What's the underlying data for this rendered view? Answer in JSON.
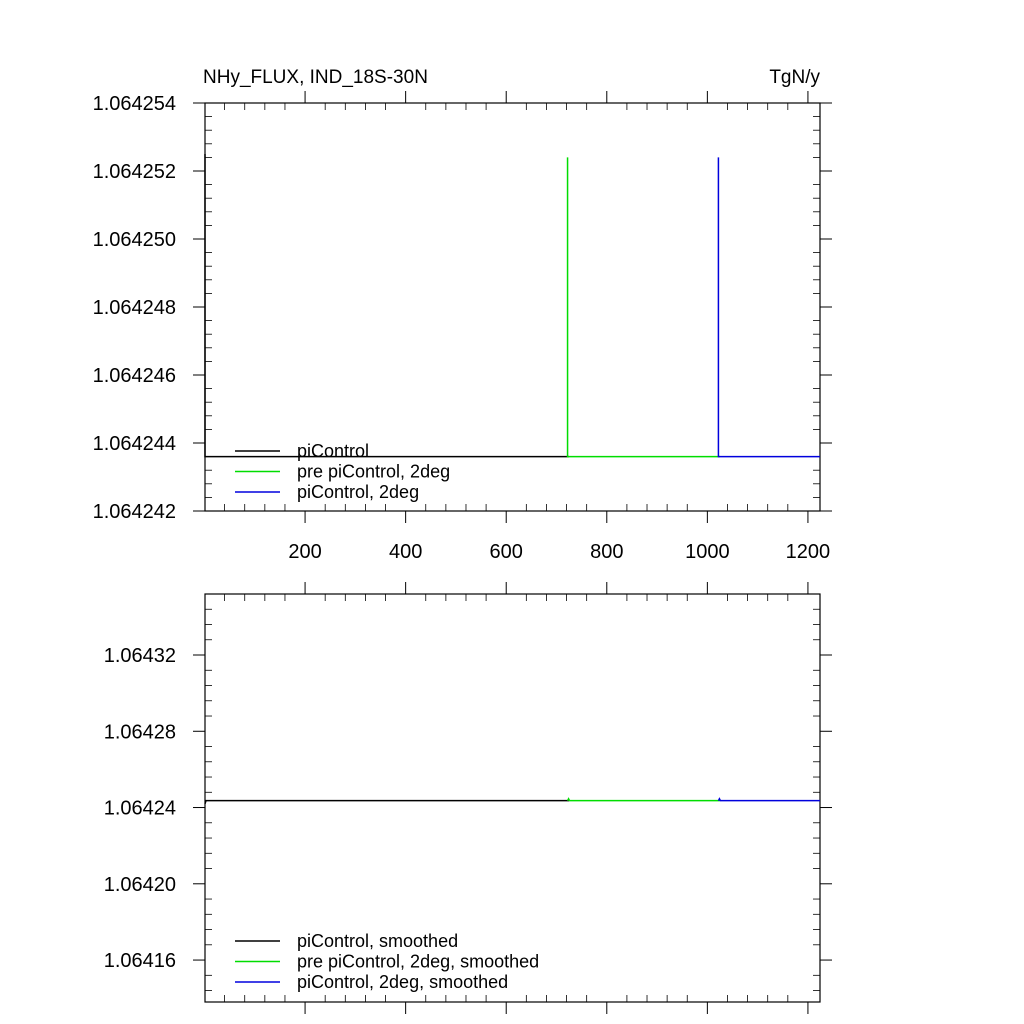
{
  "chart_data": [
    {
      "type": "line",
      "title": "NHy_FLUX, IND_18S-30N",
      "units": "TgN/y",
      "xlabel": "",
      "ylabel": "",
      "xlim": [
        1,
        1224
      ],
      "ylim": [
        1.064242,
        1.064254
      ],
      "x_ticks": [
        200,
        400,
        600,
        800,
        1000,
        1200
      ],
      "x_tick_labels": [
        "200",
        "400",
        "600",
        "800",
        "1000",
        "1200"
      ],
      "y_ticks": [
        1.064242,
        1.064244,
        1.064246,
        1.064248,
        1.06425,
        1.064252,
        1.064254
      ],
      "y_tick_labels": [
        "1.064242",
        "1.064244",
        "1.064246",
        "1.064248",
        "1.064250",
        "1.064252",
        "1.064254"
      ],
      "legend_position": "bottom-left",
      "series": [
        {
          "name": "piControl",
          "color": "#000000",
          "x": [
            1,
            1,
            5,
            10,
            100,
            300,
            500,
            725
          ],
          "y": [
            1.0642525,
            1.0642436,
            1.0642436,
            1.0642436,
            1.0642436,
            1.0642436,
            1.0642436,
            1.0642436
          ]
        },
        {
          "name": "pre piControl, 2deg",
          "color": "#00dd00",
          "x": [
            722,
            722,
            725,
            900,
            1025
          ],
          "y": [
            1.0642524,
            1.0642436,
            1.0642436,
            1.0642436,
            1.0642436
          ]
        },
        {
          "name": "piControl, 2deg",
          "color": "#0000dd",
          "x": [
            1022,
            1022,
            1025,
            1100,
            1224
          ],
          "y": [
            1.0642524,
            1.0642436,
            1.0642436,
            1.0642436,
            1.0642436
          ]
        }
      ]
    },
    {
      "type": "line",
      "title": "",
      "xlabel": "",
      "ylabel": "",
      "xlim": [
        1,
        1224
      ],
      "ylim": [
        1.064138,
        1.064352
      ],
      "x_ticks": [
        200,
        400,
        600,
        800,
        1000,
        1200
      ],
      "x_tick_labels": [],
      "y_ticks": [
        1.06416,
        1.0642,
        1.06424,
        1.06428,
        1.06432
      ],
      "y_tick_labels": [
        "1.06416",
        "1.06420",
        "1.06424",
        "1.06428",
        "1.06432"
      ],
      "legend_position": "bottom-left",
      "series": [
        {
          "name": "piControl, smoothed",
          "color": "#000000",
          "x": [
            1,
            3,
            5,
            100,
            300,
            500,
            725
          ],
          "y": [
            1.064242,
            1.0642436,
            1.0642436,
            1.0642436,
            1.0642436,
            1.0642436,
            1.0642436
          ]
        },
        {
          "name": "pre piControl, 2deg, smoothed",
          "color": "#00dd00",
          "x": [
            722,
            724,
            726,
            900,
            1025
          ],
          "y": [
            1.0642436,
            1.0642446,
            1.0642436,
            1.0642436,
            1.0642436
          ]
        },
        {
          "name": "piControl, 2deg, smoothed",
          "color": "#0000dd",
          "x": [
            1022,
            1024,
            1026,
            1100,
            1224
          ],
          "y": [
            1.0642436,
            1.0642446,
            1.0642436,
            1.0642436,
            1.0642436
          ]
        }
      ]
    }
  ]
}
